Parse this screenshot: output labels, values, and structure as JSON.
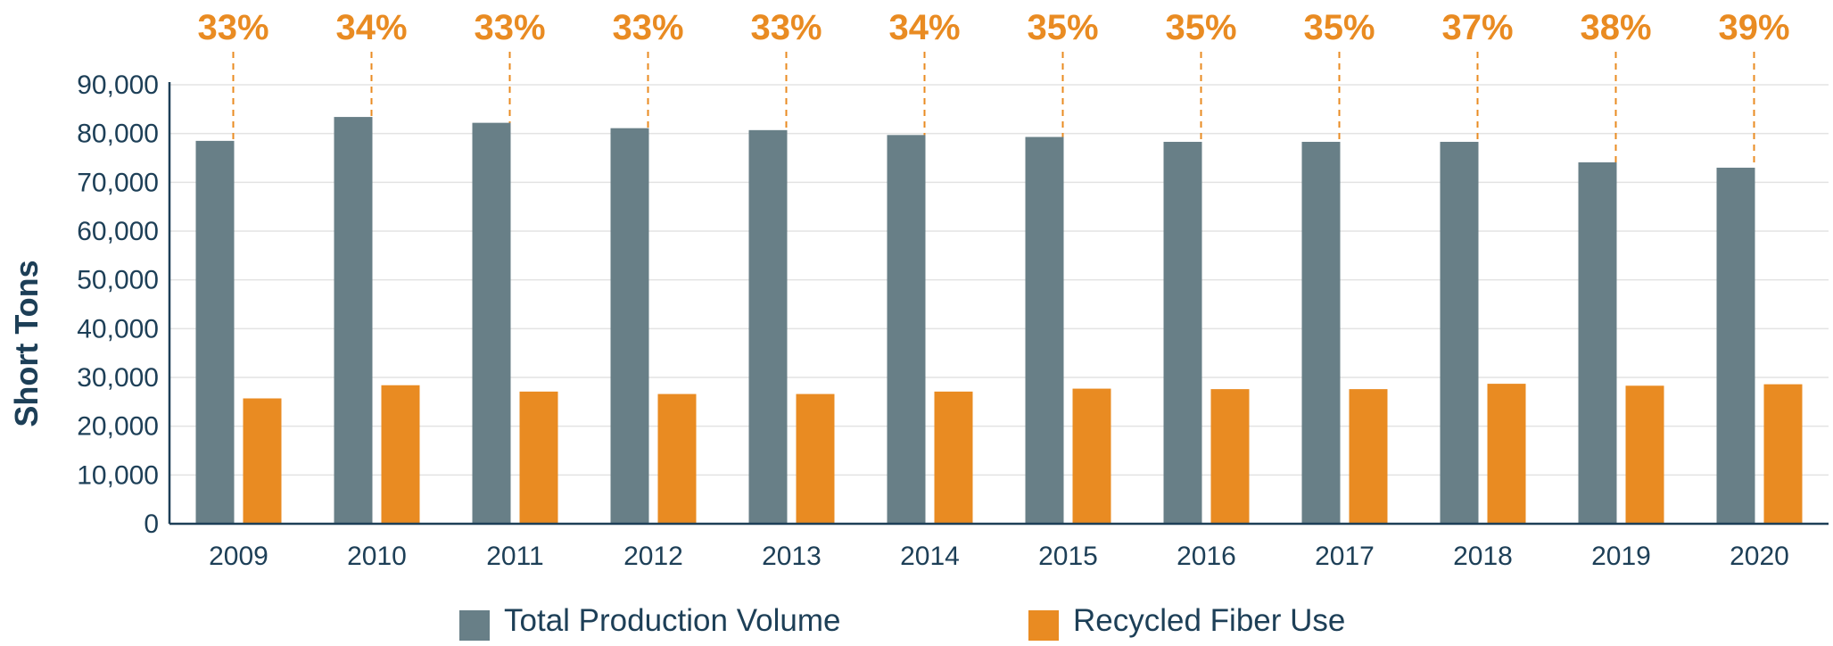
{
  "chart_data": {
    "type": "bar",
    "categories": [
      "2009",
      "2010",
      "2011",
      "2012",
      "2013",
      "2014",
      "2015",
      "2016",
      "2017",
      "2018",
      "2019",
      "2020"
    ],
    "series": [
      {
        "name": "Total Production Volume",
        "color": "#687f87",
        "values": [
          78500,
          83400,
          82200,
          81100,
          80700,
          79700,
          79300,
          78300,
          78300,
          78300,
          74100,
          73000
        ]
      },
      {
        "name": "Recycled Fiber Use",
        "color": "#e98b22",
        "values": [
          25700,
          28400,
          27100,
          26600,
          26600,
          27100,
          27700,
          27600,
          27600,
          28700,
          28300,
          28600
        ]
      }
    ],
    "percent_labels": [
      "33%",
      "34%",
      "33%",
      "33%",
      "33%",
      "34%",
      "35%",
      "35%",
      "35%",
      "37%",
      "38%",
      "39%"
    ],
    "ylabel": "Short Tons",
    "xlabel": "",
    "ylim": [
      0,
      90000
    ],
    "yticks": [
      0,
      10000,
      20000,
      30000,
      40000,
      50000,
      60000,
      70000,
      80000,
      90000
    ],
    "ytick_labels": [
      "0",
      "10,000",
      "20,000",
      "30,000",
      "40,000",
      "50,000",
      "60,000",
      "70,000",
      "80,000",
      "90,000"
    ],
    "grid": true,
    "legend_position": "bottom-center",
    "colors": {
      "axis": "#1d3f57",
      "grid": "#e3e3e3",
      "dashed": "#e98b22"
    }
  }
}
